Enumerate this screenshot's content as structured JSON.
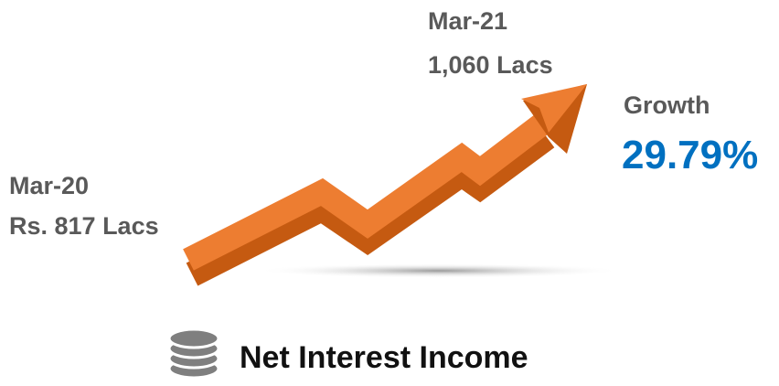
{
  "end": {
    "period": "Mar-21",
    "amount": "1,060 Lacs"
  },
  "growth": {
    "label": "Growth",
    "value": "29.79%"
  },
  "start": {
    "period": "Mar-20",
    "amount": "Rs. 817 Lacs"
  },
  "caption": "Net Interest Income"
}
